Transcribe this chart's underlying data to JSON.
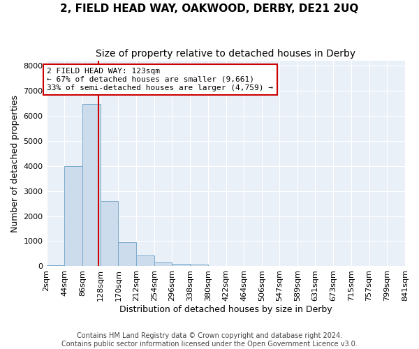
{
  "title": "2, FIELD HEAD WAY, OAKWOOD, DERBY, DE21 2UQ",
  "subtitle": "Size of property relative to detached houses in Derby",
  "xlabel": "Distribution of detached houses by size in Derby",
  "ylabel": "Number of detached properties",
  "bar_edges": [
    2,
    44,
    86,
    128,
    170,
    212,
    254,
    296,
    338,
    380,
    422,
    464,
    506,
    547,
    589,
    631,
    673,
    715,
    757,
    799,
    841
  ],
  "bar_heights": [
    50,
    3980,
    6450,
    2600,
    950,
    430,
    150,
    100,
    60,
    0,
    0,
    0,
    0,
    0,
    0,
    0,
    0,
    0,
    0,
    0
  ],
  "bar_color": "#ccdcec",
  "bar_edge_color": "#7aaacc",
  "property_size": 123,
  "vline_color": "#cc0000",
  "annotation_text": "2 FIELD HEAD WAY: 123sqm\n← 67% of detached houses are smaller (9,661)\n33% of semi-detached houses are larger (4,759) →",
  "annotation_box_color": "#ffffff",
  "annotation_box_edge": "#cc0000",
  "ylim": [
    0,
    8200
  ],
  "yticks": [
    0,
    1000,
    2000,
    3000,
    4000,
    5000,
    6000,
    7000,
    8000
  ],
  "footer_text": "Contains HM Land Registry data © Crown copyright and database right 2024.\nContains public sector information licensed under the Open Government Licence v3.0.",
  "bg_color": "#ffffff",
  "plot_bg_color": "#eaf0f8",
  "grid_color": "#ffffff",
  "title_fontsize": 11,
  "subtitle_fontsize": 10,
  "axis_label_fontsize": 9,
  "tick_fontsize": 8,
  "annotation_fontsize": 8,
  "footer_fontsize": 7
}
